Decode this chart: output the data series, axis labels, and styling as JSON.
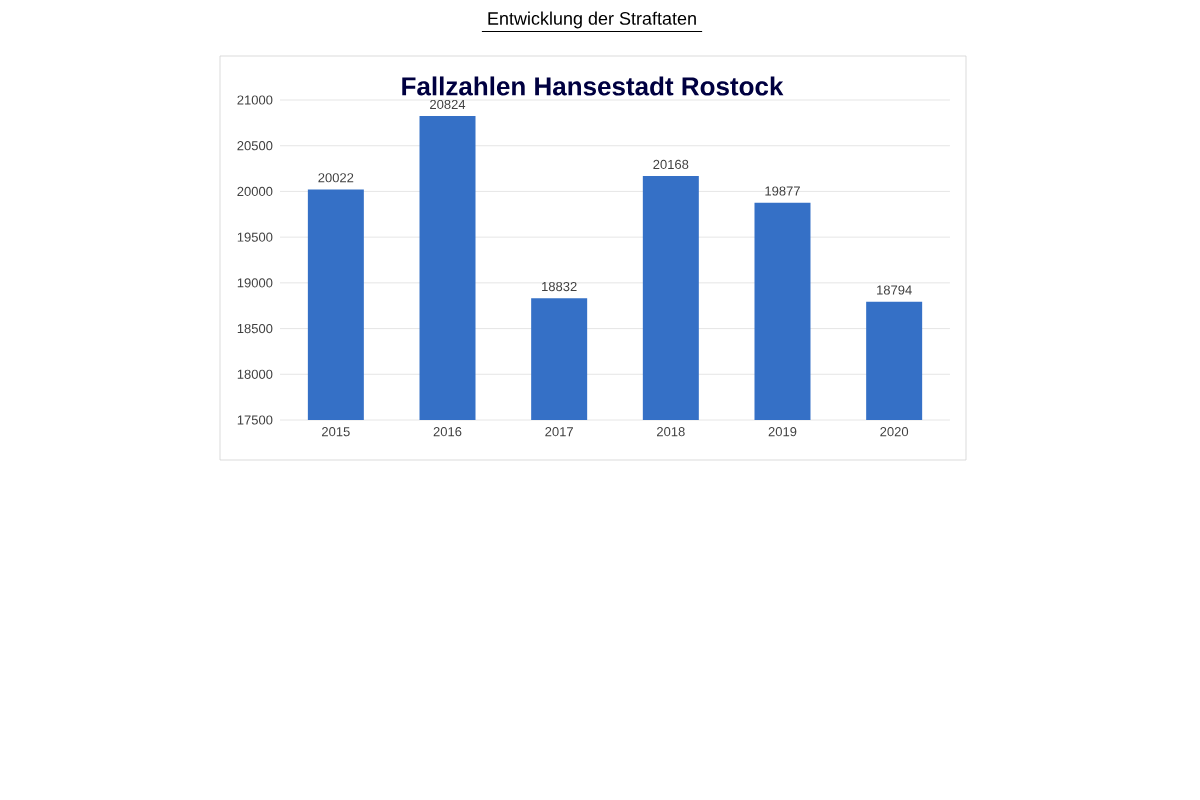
{
  "chart_data": {
    "type": "bar",
    "title": "Entwicklung der Straftaten",
    "subtitle": "Fallzahlen Hansestadt Rostock",
    "categories": [
      "2015",
      "2016",
      "2017",
      "2018",
      "2019",
      "2020"
    ],
    "values": [
      20022,
      20824,
      18832,
      20168,
      19877,
      18794
    ],
    "color": "#3570c6",
    "data_labels": true,
    "grid": "y",
    "ylim": [
      17500,
      21000
    ],
    "yticks": [
      17500,
      18000,
      18500,
      19000,
      19500,
      20000,
      20500,
      21000
    ]
  }
}
